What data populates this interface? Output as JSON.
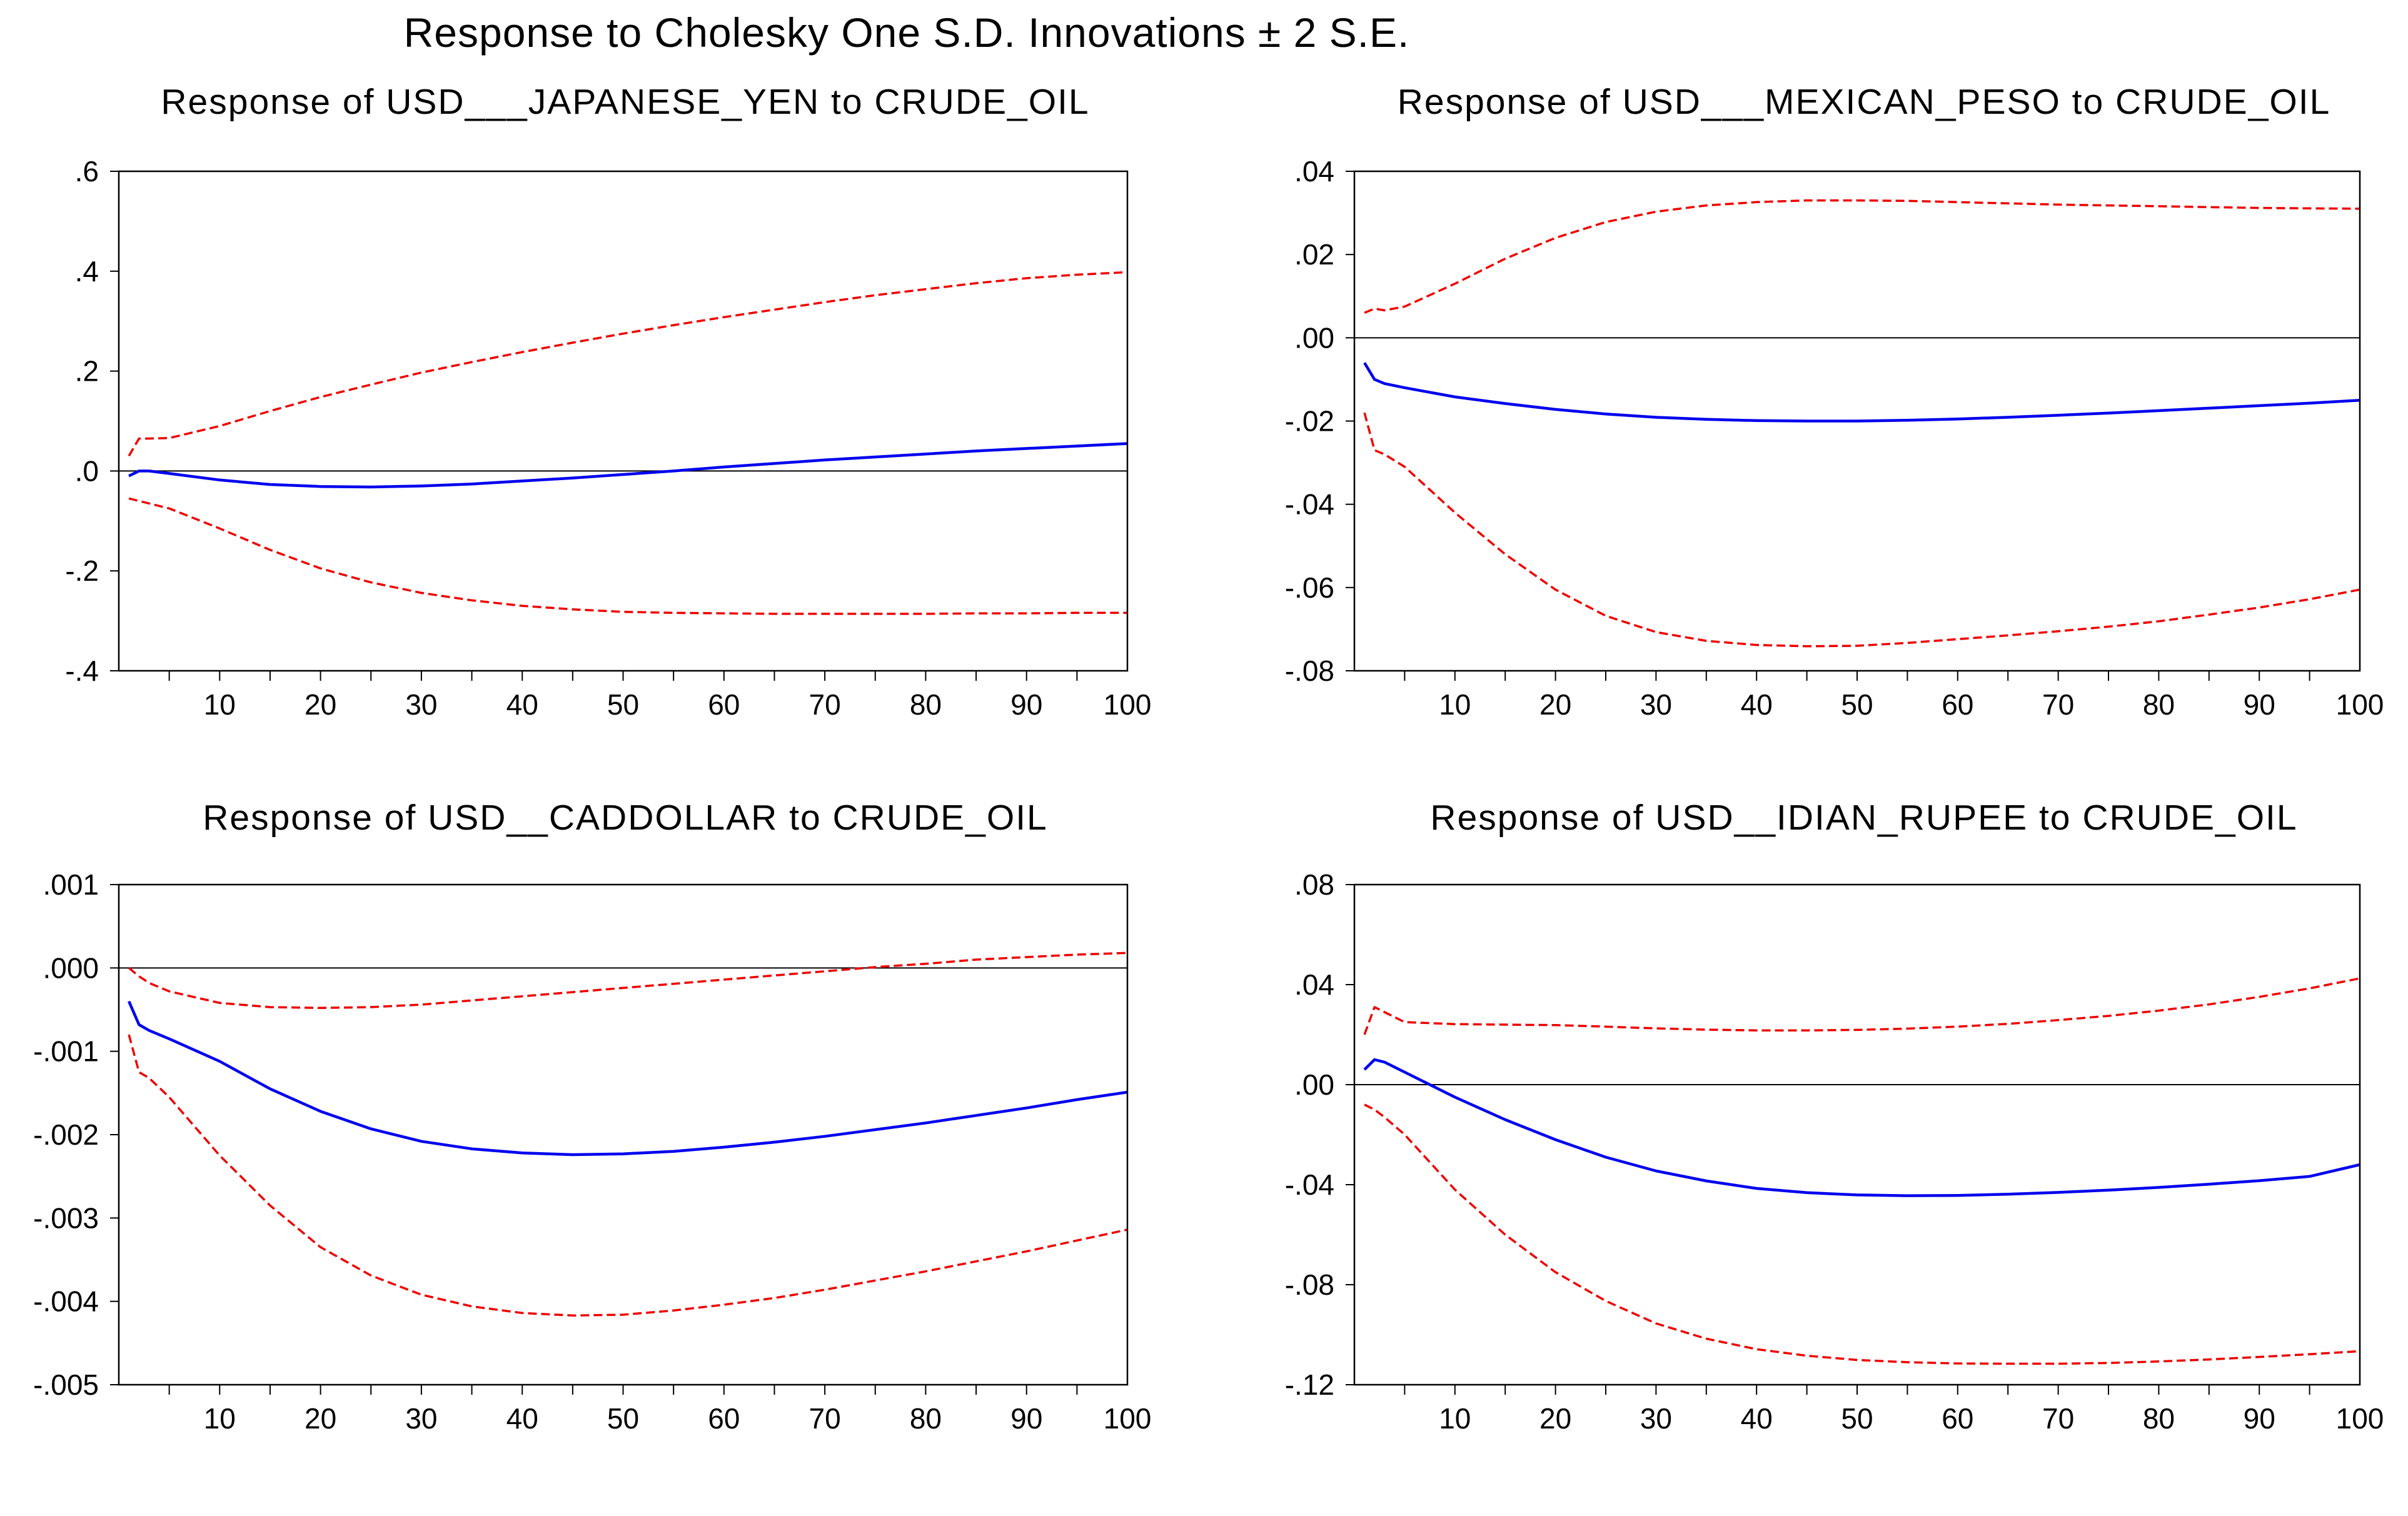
{
  "title": "Response to Cholesky One S.D. Innovations ± 2 S.E.",
  "colors": {
    "response": "#0000ee",
    "bands": "#ee0000",
    "zero_line": "#000000",
    "frame": "#000000"
  },
  "chart_data": [
    {
      "type": "line",
      "title": "Response of USD___JAPANESE_YEN to CRUDE_OIL",
      "x": [
        1,
        2,
        3,
        5,
        10,
        15,
        20,
        25,
        30,
        35,
        40,
        45,
        50,
        55,
        60,
        65,
        70,
        75,
        80,
        85,
        90,
        95,
        100
      ],
      "xlim": [
        0,
        100
      ],
      "ylim": [
        -0.4,
        0.6
      ],
      "yticks": [
        -0.4,
        -0.2,
        0.0,
        0.2,
        0.4,
        0.6
      ],
      "ytick_labels": [
        "-.4",
        "-.2",
        ".0",
        ".2",
        ".4",
        ".6"
      ],
      "xticks": [
        10,
        20,
        30,
        40,
        50,
        60,
        70,
        80,
        90,
        100
      ],
      "xtick_labels": [
        "10",
        "20",
        "30",
        "40",
        "50",
        "60",
        "70",
        "80",
        "90",
        "100"
      ],
      "series": [
        {
          "name": "response",
          "style": "solid",
          "values": [
            -0.01,
            0.0,
            0.0,
            -0.005,
            -0.018,
            -0.027,
            -0.031,
            -0.032,
            -0.03,
            -0.026,
            -0.02,
            -0.014,
            -0.007,
            0.0,
            0.008,
            0.015,
            0.022,
            0.028,
            0.034,
            0.04,
            0.045,
            0.05,
            0.055
          ]
        },
        {
          "name": "upper band (+2 S.E.)",
          "style": "dashed",
          "values": [
            0.03,
            0.065,
            0.065,
            0.066,
            0.09,
            0.12,
            0.148,
            0.173,
            0.197,
            0.218,
            0.238,
            0.257,
            0.275,
            0.292,
            0.308,
            0.323,
            0.338,
            0.352,
            0.364,
            0.376,
            0.386,
            0.393,
            0.398
          ]
        },
        {
          "name": "lower band (-2 S.E.)",
          "style": "dashed",
          "values": [
            -0.055,
            -0.06,
            -0.065,
            -0.075,
            -0.115,
            -0.158,
            -0.195,
            -0.223,
            -0.244,
            -0.259,
            -0.27,
            -0.277,
            -0.282,
            -0.284,
            -0.285,
            -0.286,
            -0.286,
            -0.286,
            -0.286,
            -0.285,
            -0.285,
            -0.284,
            -0.284
          ]
        }
      ]
    },
    {
      "type": "line",
      "title": "Response of USD___MEXICAN_PESO to CRUDE_OIL",
      "x": [
        1,
        2,
        3,
        5,
        10,
        15,
        20,
        25,
        30,
        35,
        40,
        45,
        50,
        55,
        60,
        65,
        70,
        75,
        80,
        85,
        90,
        95,
        100
      ],
      "xlim": [
        0,
        100
      ],
      "ylim": [
        -0.08,
        0.04
      ],
      "yticks": [
        -0.08,
        -0.06,
        -0.04,
        -0.02,
        0.0,
        0.02,
        0.04
      ],
      "ytick_labels": [
        "-.08",
        "-.06",
        "-.04",
        "-.02",
        ".00",
        ".02",
        ".04"
      ],
      "xticks": [
        10,
        20,
        30,
        40,
        50,
        60,
        70,
        80,
        90,
        100
      ],
      "xtick_labels": [
        "10",
        "20",
        "30",
        "40",
        "50",
        "60",
        "70",
        "80",
        "90",
        "100"
      ],
      "series": [
        {
          "name": "response",
          "style": "solid",
          "values": [
            -0.006,
            -0.01,
            -0.011,
            -0.012,
            -0.0142,
            -0.0158,
            -0.0172,
            -0.0183,
            -0.0191,
            -0.0196,
            -0.0199,
            -0.02,
            -0.02,
            -0.0198,
            -0.0195,
            -0.0191,
            -0.0186,
            -0.0181,
            -0.0175,
            -0.0169,
            -0.0163,
            -0.0157,
            -0.015
          ]
        },
        {
          "name": "upper band (+2 S.E.)",
          "style": "dashed",
          "values": [
            0.006,
            0.007,
            0.0066,
            0.0075,
            0.013,
            0.019,
            0.024,
            0.0278,
            0.0303,
            0.0318,
            0.0326,
            0.033,
            0.033,
            0.0329,
            0.0326,
            0.0323,
            0.032,
            0.0318,
            0.0316,
            0.0314,
            0.0312,
            0.0311,
            0.031
          ]
        },
        {
          "name": "lower band (-2 S.E.)",
          "style": "dashed",
          "values": [
            -0.018,
            -0.027,
            -0.028,
            -0.031,
            -0.042,
            -0.052,
            -0.0605,
            -0.0668,
            -0.0707,
            -0.0728,
            -0.0738,
            -0.0741,
            -0.074,
            -0.0733,
            -0.0724,
            -0.0715,
            -0.0705,
            -0.0694,
            -0.0681,
            -0.0665,
            -0.0648,
            -0.0628,
            -0.0605
          ]
        }
      ]
    },
    {
      "type": "line",
      "title": "Response of USD__CADDOLLAR to CRUDE_OIL",
      "x": [
        1,
        2,
        3,
        5,
        10,
        15,
        20,
        25,
        30,
        35,
        40,
        45,
        50,
        55,
        60,
        65,
        70,
        75,
        80,
        85,
        90,
        95,
        100
      ],
      "xlim": [
        0,
        100
      ],
      "ylim": [
        -0.005,
        0.001
      ],
      "yticks": [
        -0.005,
        -0.004,
        -0.003,
        -0.002,
        -0.001,
        0.0,
        0.001
      ],
      "ytick_labels": [
        "-.005",
        "-.004",
        "-.003",
        "-.002",
        "-.001",
        ".000",
        ".001"
      ],
      "xticks": [
        10,
        20,
        30,
        40,
        50,
        60,
        70,
        80,
        90,
        100
      ],
      "xtick_labels": [
        "10",
        "20",
        "30",
        "40",
        "50",
        "60",
        "70",
        "80",
        "90",
        "100"
      ],
      "series": [
        {
          "name": "response",
          "style": "solid",
          "values": [
            -0.0004,
            -0.00068,
            -0.00075,
            -0.00085,
            -0.00112,
            -0.00145,
            -0.00172,
            -0.00193,
            -0.00208,
            -0.00217,
            -0.00222,
            -0.00224,
            -0.00223,
            -0.0022,
            -0.00215,
            -0.00209,
            -0.00202,
            -0.00194,
            -0.00186,
            -0.00177,
            -0.00168,
            -0.00158,
            -0.00149
          ]
        },
        {
          "name": "upper band (+2 S.E.)",
          "style": "dashed",
          "values": [
            0.0,
            -0.0001,
            -0.00018,
            -0.00028,
            -0.00042,
            -0.00047,
            -0.00048,
            -0.00047,
            -0.00044,
            -0.00039,
            -0.00034,
            -0.00029,
            -0.00024,
            -0.00019,
            -0.00014,
            -9e-05,
            -4e-05,
            1e-05,
            5e-05,
            0.0001,
            0.00013,
            0.00016,
            0.00018
          ]
        },
        {
          "name": "lower band (-2 S.E.)",
          "style": "dashed",
          "values": [
            -0.0008,
            -0.00125,
            -0.00132,
            -0.00155,
            -0.00225,
            -0.00285,
            -0.00335,
            -0.00369,
            -0.00392,
            -0.00406,
            -0.00414,
            -0.00417,
            -0.00416,
            -0.00411,
            -0.00404,
            -0.00396,
            -0.00386,
            -0.00375,
            -0.00364,
            -0.00352,
            -0.0034,
            -0.00327,
            -0.00314
          ]
        }
      ]
    },
    {
      "type": "line",
      "title": "Response of USD__IDIAN_RUPEE to CRUDE_OIL",
      "x": [
        1,
        2,
        3,
        5,
        10,
        15,
        20,
        25,
        30,
        35,
        40,
        45,
        50,
        55,
        60,
        65,
        70,
        75,
        80,
        85,
        90,
        95,
        100
      ],
      "xlim": [
        0,
        100
      ],
      "ylim": [
        -0.12,
        0.08
      ],
      "yticks": [
        -0.12,
        -0.08,
        -0.04,
        0.0,
        0.04,
        0.08
      ],
      "ytick_labels": [
        "-.12",
        "-.08",
        "-.04",
        ".00",
        ".04",
        ".08"
      ],
      "xticks": [
        10,
        20,
        30,
        40,
        50,
        60,
        70,
        80,
        90,
        100
      ],
      "xtick_labels": [
        "10",
        "20",
        "30",
        "40",
        "50",
        "60",
        "70",
        "80",
        "90",
        "100"
      ],
      "series": [
        {
          "name": "response",
          "style": "solid",
          "values": [
            0.006,
            0.01,
            0.009,
            0.005,
            -0.005,
            -0.014,
            -0.022,
            -0.029,
            -0.0345,
            -0.0385,
            -0.0415,
            -0.0432,
            -0.0441,
            -0.0444,
            -0.0443,
            -0.0438,
            -0.0431,
            -0.0422,
            -0.0411,
            -0.0398,
            -0.0384,
            -0.0367,
            -0.032
          ]
        },
        {
          "name": "upper band (+2 S.E.)",
          "style": "dashed",
          "values": [
            0.02,
            0.031,
            0.029,
            0.025,
            0.0242,
            0.024,
            0.0238,
            0.0232,
            0.0225,
            0.022,
            0.0217,
            0.0217,
            0.0219,
            0.0224,
            0.0232,
            0.0243,
            0.0258,
            0.0275,
            0.0296,
            0.0321,
            0.0351,
            0.0385,
            0.0425
          ]
        },
        {
          "name": "lower band (-2 S.E.)",
          "style": "dashed",
          "values": [
            -0.008,
            -0.01,
            -0.013,
            -0.02,
            -0.042,
            -0.06,
            -0.075,
            -0.0865,
            -0.0955,
            -0.1016,
            -0.1058,
            -0.1084,
            -0.1101,
            -0.111,
            -0.1115,
            -0.1116,
            -0.1116,
            -0.1113,
            -0.1107,
            -0.1099,
            -0.1089,
            -0.1078,
            -0.1066
          ]
        }
      ]
    }
  ]
}
